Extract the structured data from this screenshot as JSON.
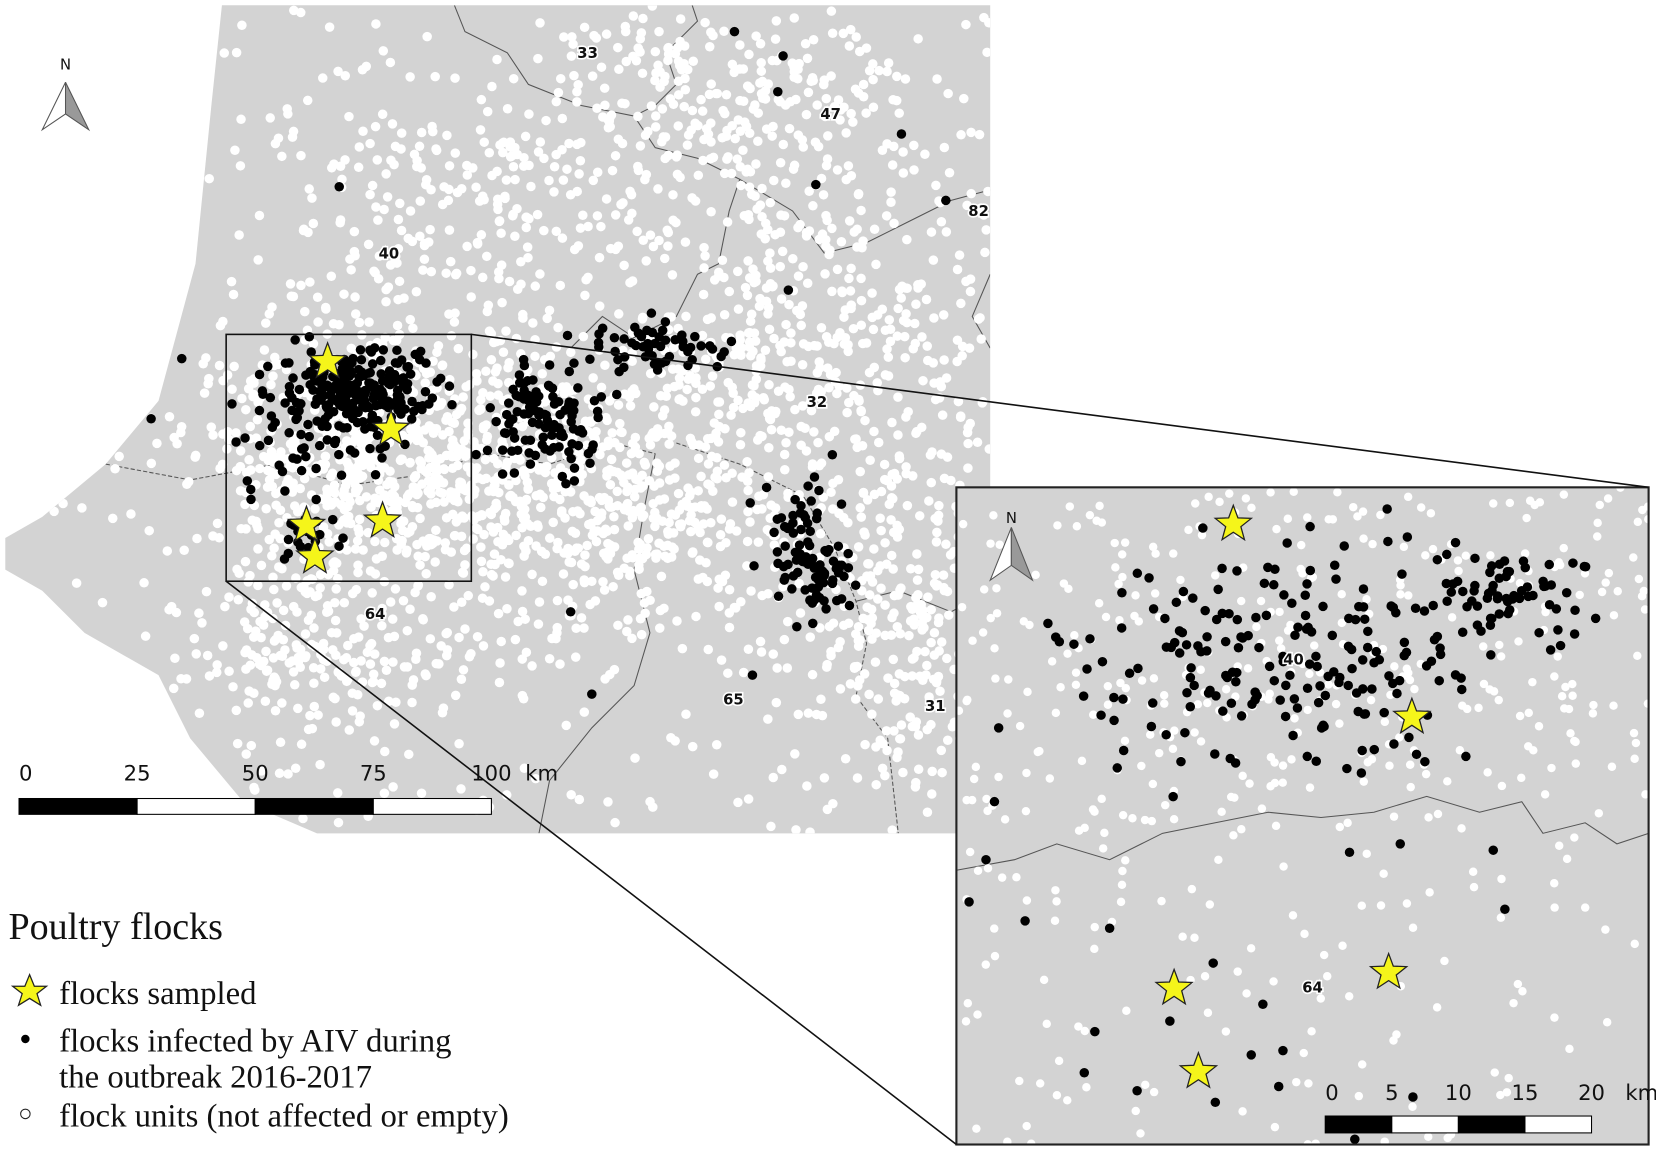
{
  "map": {
    "department_labels": [
      "33",
      "47",
      "82",
      "40",
      "32",
      "64",
      "65",
      "31"
    ],
    "north_label": "N",
    "scale_bar": {
      "labels": [
        "0",
        "25",
        "50",
        "75",
        "100"
      ],
      "unit": "km"
    },
    "inset": {
      "department_labels": [
        "40",
        "64"
      ],
      "north_label": "N",
      "scale_bar": {
        "labels": [
          "0",
          "5",
          "10",
          "15",
          "20"
        ],
        "unit": "km"
      }
    }
  },
  "legend": {
    "title": "Poultry flocks",
    "items": [
      [
        "flocks sampled"
      ],
      [
        "flocks infected by AIV during",
        "the outbreak 2016-2017"
      ],
      [
        "flock units (not affected or empty)"
      ]
    ]
  }
}
